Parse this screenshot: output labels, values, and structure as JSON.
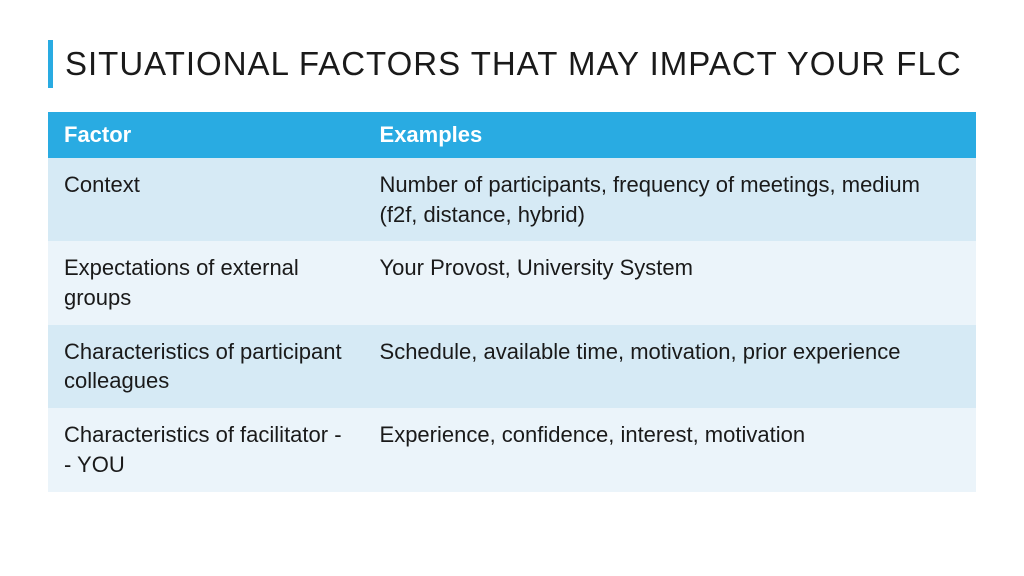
{
  "slide": {
    "title": "SITUATIONAL FACTORS THAT MAY IMPACT YOUR FLC",
    "accent_color": "#29abe2",
    "background_color": "#ffffff"
  },
  "table": {
    "header_bg": "#29abe2",
    "header_text_color": "#ffffff",
    "row_even_bg": "#d6eaf5",
    "row_odd_bg": "#ebf4fa",
    "text_color": "#1a1a1a",
    "columns": [
      {
        "key": "factor",
        "label": "Factor",
        "width": "34%"
      },
      {
        "key": "examples",
        "label": "Examples",
        "width": "66%"
      }
    ],
    "rows": [
      {
        "factor": "Context",
        "examples": "Number of participants, frequency of meetings, medium (f2f, distance, hybrid)"
      },
      {
        "factor": "Expectations of external groups",
        "examples": "Your Provost, University System"
      },
      {
        "factor": "Characteristics of participant colleagues",
        "examples": "Schedule, available time, motivation, prior experience"
      },
      {
        "factor": "Characteristics of facilitator -- YOU",
        "examples": "Experience, confidence, interest, motivation"
      }
    ]
  }
}
